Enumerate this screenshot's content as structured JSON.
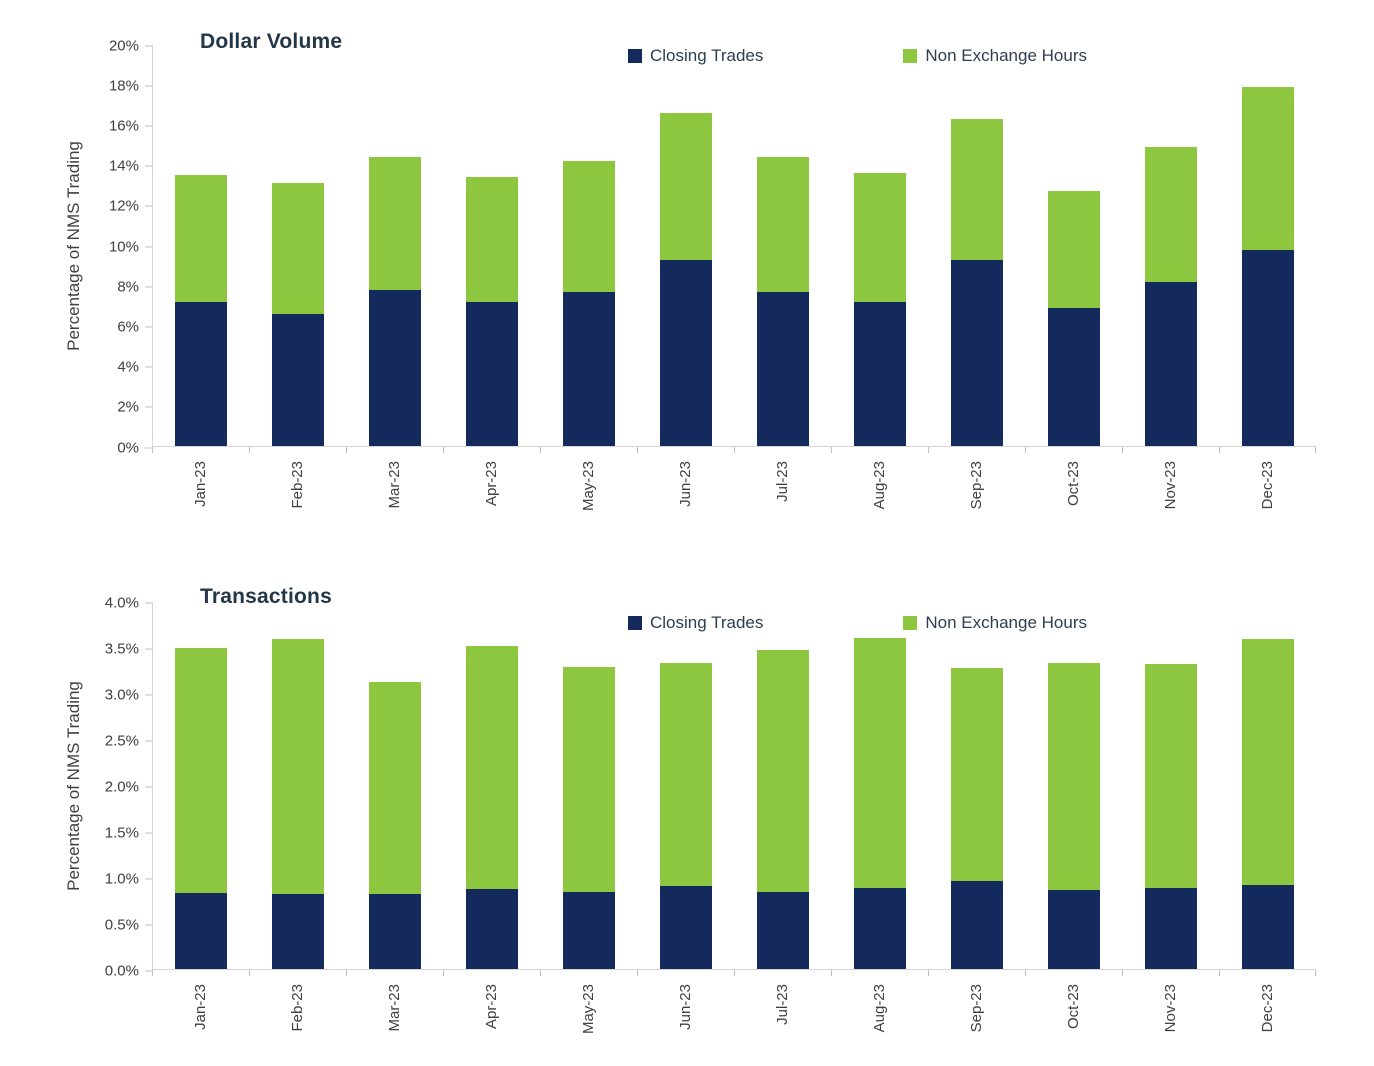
{
  "chart_data": [
    {
      "type": "bar",
      "stacked": true,
      "title": "Dollar Volume",
      "ylabel": "Percentage of NMS Trading",
      "categories": [
        "Jan-23",
        "Feb-23",
        "Mar-23",
        "Apr-23",
        "May-23",
        "Jun-23",
        "Jul-23",
        "Aug-23",
        "Sep-23",
        "Oct-23",
        "Nov-23",
        "Dec-23"
      ],
      "series": [
        {
          "name": "Closing Trades",
          "color": "#142a5c",
          "values": [
            7.2,
            6.6,
            7.8,
            7.2,
            7.7,
            9.3,
            7.7,
            7.2,
            9.3,
            6.9,
            8.2,
            9.8
          ]
        },
        {
          "name": "Non Exchange Hours",
          "color": "#8dc63f",
          "values": [
            6.3,
            6.5,
            6.6,
            6.2,
            6.5,
            7.3,
            6.7,
            6.4,
            7.0,
            5.8,
            6.7,
            8.1
          ]
        }
      ],
      "ylim": [
        0,
        20
      ],
      "ytick_step": 2,
      "ytick_format": "percent_int",
      "grid": false,
      "legend_position": "top"
    },
    {
      "type": "bar",
      "stacked": true,
      "title": "Transactions",
      "ylabel": "Percentage of NMS Trading",
      "categories": [
        "Jan-23",
        "Feb-23",
        "Mar-23",
        "Apr-23",
        "May-23",
        "Jun-23",
        "Jul-23",
        "Aug-23",
        "Sep-23",
        "Oct-23",
        "Nov-23",
        "Dec-23"
      ],
      "series": [
        {
          "name": "Closing Trades",
          "color": "#142a5c",
          "values": [
            0.83,
            0.82,
            0.82,
            0.87,
            0.84,
            0.91,
            0.84,
            0.88,
            0.96,
            0.86,
            0.88,
            0.92
          ]
        },
        {
          "name": "Non Exchange Hours",
          "color": "#8dc63f",
          "values": [
            2.67,
            2.78,
            2.31,
            2.65,
            2.45,
            2.43,
            2.64,
            2.73,
            2.32,
            2.48,
            2.44,
            2.68
          ]
        }
      ],
      "ylim": [
        0,
        4
      ],
      "ytick_step": 0.5,
      "ytick_format": "percent_1dp",
      "grid": false,
      "legend_position": "top"
    }
  ]
}
